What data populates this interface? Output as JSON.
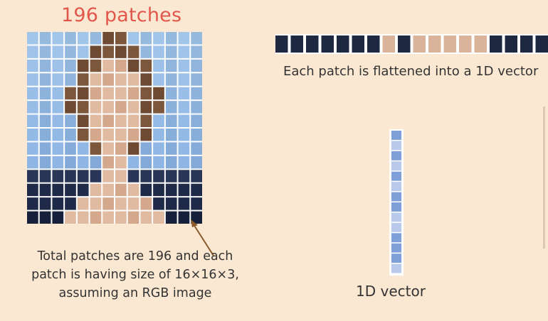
{
  "diagram": {
    "title": "196 patches",
    "grid": {
      "rows": 14,
      "cols": 14
    },
    "caption_lines": [
      "Total patches are 196 and each",
      "patch is having size of 16×16×3,",
      "assuming an RGB image"
    ],
    "flattened_label": "Each patch is flattened into a 1D vector",
    "vector_label": "1D vector",
    "colors": {
      "background": "#fbe8d2",
      "title": "#e2574c",
      "arrow": "#8a5a2b",
      "grid_gap": "#ffffff",
      "vector_fill": "#7e9fd8",
      "vector_light": "#b8c9ec",
      "strip_dark": "#1e2840",
      "strip_skin": "#d9b49a"
    }
  }
}
